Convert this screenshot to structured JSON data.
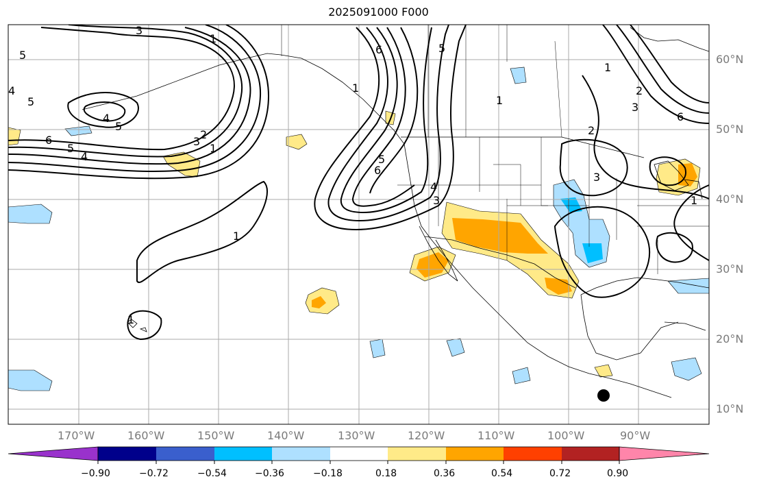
{
  "title": "2025091000 F000",
  "latitude_labels": [
    "60°N",
    "50°N",
    "40°N",
    "30°N",
    "20°N",
    "10°N"
  ],
  "longitude_labels": [
    "170°W",
    "160°W",
    "150°W",
    "140°W",
    "130°W",
    "120°W",
    "110°W",
    "100°W",
    "90°W"
  ],
  "contour_labels": [
    "1",
    "2",
    "3",
    "4",
    "5",
    "6"
  ],
  "colorbar": {
    "tick_labels": [
      "−0.90",
      "−0.72",
      "−0.54",
      "−0.36",
      "−0.18",
      "0.18",
      "0.36",
      "0.54",
      "0.72",
      "0.90"
    ],
    "colors": [
      "#9932cc",
      "#00008b",
      "#3a5fcd",
      "#00bfff",
      "#aee0ff",
      "#ffffff",
      "#ffea88",
      "#ffa500",
      "#ff4000",
      "#b22222",
      "#ff85aa"
    ]
  }
}
